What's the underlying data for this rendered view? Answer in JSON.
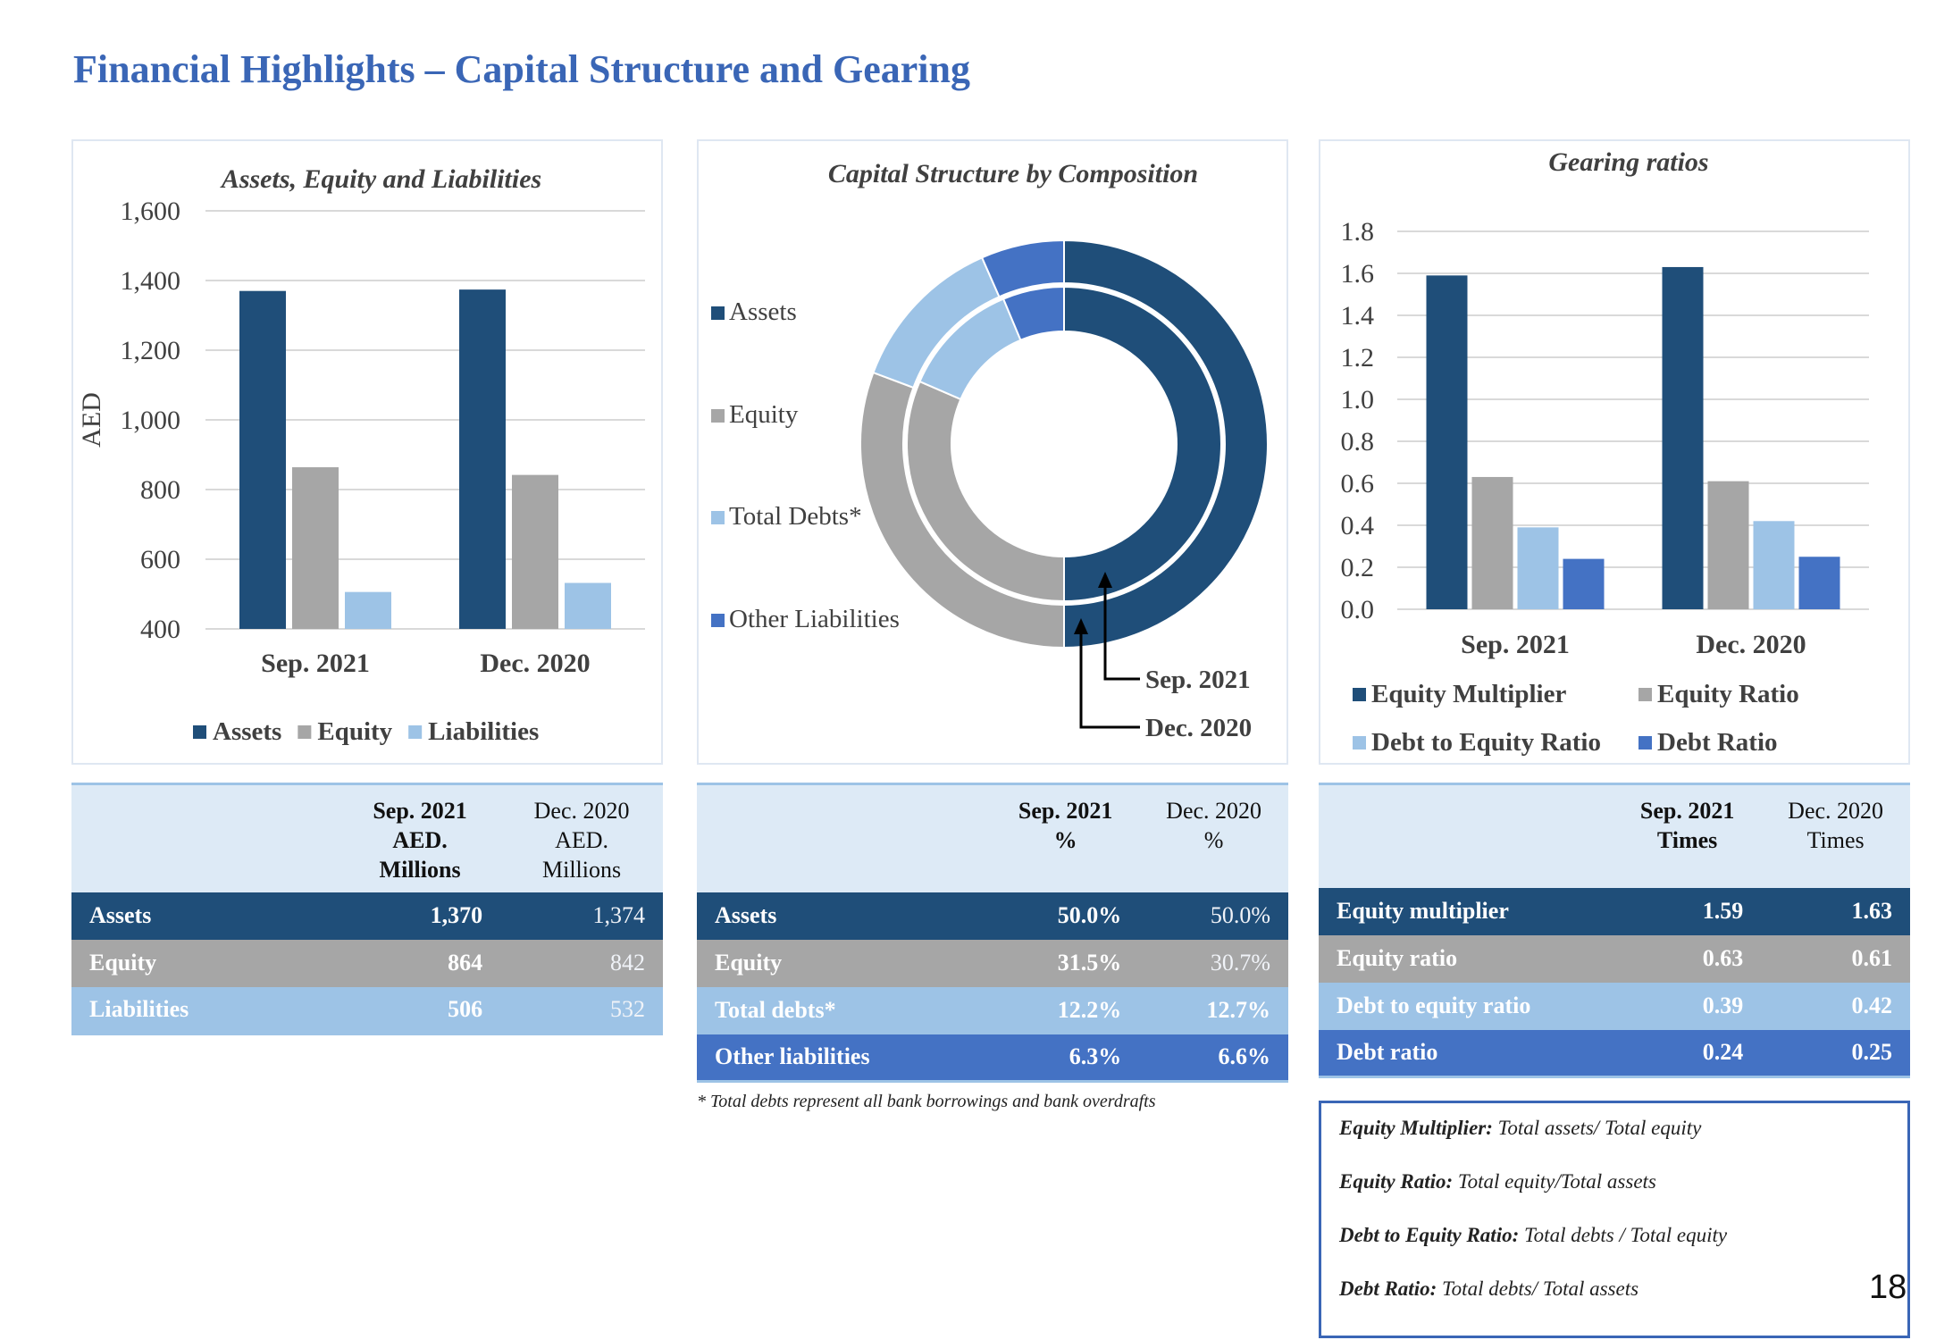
{
  "page": {
    "title": "Financial Highlights – Capital Structure and Gearing",
    "page_number": "18",
    "footnote": "* Total debts represent all bank borrowings and bank overdrafts"
  },
  "colors": {
    "assets": "#1f4e79",
    "equity": "#a6a6a6",
    "total_debts": "#9dc3e6",
    "other_liabilities": "#4472c4",
    "title": "#3a66b6"
  },
  "chart_data": [
    {
      "type": "bar",
      "title": "Assets, Equity and Liabilities",
      "ylabel": "AED",
      "xlabel": "",
      "ylim": [
        400,
        1600
      ],
      "yticks": [
        "1,600",
        "1,400",
        "1,200",
        "1,000",
        "800",
        "600",
        "400"
      ],
      "categories": [
        "Sep. 2021",
        "Dec. 2020"
      ],
      "series": [
        {
          "name": "Assets",
          "values": [
            1370,
            1374
          ]
        },
        {
          "name": "Equity",
          "values": [
            864,
            842
          ]
        },
        {
          "name": "Liabilities",
          "values": [
            506,
            532
          ]
        }
      ],
      "grid": true,
      "legend": "bottom"
    },
    {
      "type": "pie",
      "subtype": "doughnut",
      "title": "Capital Structure by Composition",
      "legend_entries": [
        "Assets",
        "Equity",
        "Total Debts*",
        "Other Liabilities"
      ],
      "legend": "left",
      "rings": [
        {
          "name": "Sep. 2021",
          "position": "inner",
          "values": [
            50.0,
            31.5,
            12.2,
            6.3
          ]
        },
        {
          "name": "Dec. 2020",
          "position": "outer",
          "values": [
            50.0,
            30.7,
            12.7,
            6.6
          ]
        }
      ],
      "annotations": [
        "Sep. 2021",
        "Dec. 2020"
      ]
    },
    {
      "type": "bar",
      "title": "Gearing ratios",
      "xlabel": "",
      "ylabel": "",
      "ylim": [
        0,
        1.8
      ],
      "yticks": [
        "1.8",
        "1.6",
        "1.4",
        "1.2",
        "1.0",
        "0.8",
        "0.6",
        "0.4",
        "0.2",
        "0.0"
      ],
      "categories": [
        "Sep. 2021",
        "Dec. 2020"
      ],
      "series": [
        {
          "name": "Equity Multiplier",
          "values": [
            1.59,
            1.63
          ]
        },
        {
          "name": "Equity Ratio",
          "values": [
            0.63,
            0.61
          ]
        },
        {
          "name": "Debt to Equity Ratio",
          "values": [
            0.39,
            0.42
          ]
        },
        {
          "name": "Debt Ratio",
          "values": [
            0.24,
            0.25
          ]
        }
      ],
      "grid": true,
      "legend": "bottom"
    }
  ],
  "tables": {
    "aed": {
      "headers": [
        [
          "Sep. 2021",
          "AED.",
          "Millions"
        ],
        [
          "Dec. 2020",
          "AED.",
          "Millions"
        ]
      ],
      "rows": [
        {
          "label": "Assets",
          "v1": "1,370",
          "v2": "1,374"
        },
        {
          "label": "Equity",
          "v1": "864",
          "v2": "842"
        },
        {
          "label": "Liabilities",
          "v1": "506",
          "v2": "532"
        }
      ]
    },
    "pct": {
      "headers": [
        [
          "Sep. 2021",
          "%"
        ],
        [
          "Dec. 2020",
          "%"
        ]
      ],
      "rows": [
        {
          "label": "Assets",
          "v1": "50.0%",
          "v2": "50.0%"
        },
        {
          "label": "Equity",
          "v1": "31.5%",
          "v2": "30.7%"
        },
        {
          "label": "Total debts*",
          "v1": "12.2%",
          "v2": "12.7%"
        },
        {
          "label": "Other liabilities",
          "v1": "6.3%",
          "v2": "6.6%"
        }
      ]
    },
    "times": {
      "headers": [
        [
          "Sep. 2021",
          "Times"
        ],
        [
          "Dec. 2020",
          "Times"
        ]
      ],
      "rows": [
        {
          "label": "Equity multiplier",
          "v1": "1.59",
          "v2": "1.63"
        },
        {
          "label": "Equity ratio",
          "v1": "0.63",
          "v2": "0.61"
        },
        {
          "label": "Debt to equity ratio",
          "v1": "0.39",
          "v2": "0.42"
        },
        {
          "label": "Debt ratio",
          "v1": "0.24",
          "v2": "0.25"
        }
      ]
    }
  },
  "definitions": [
    {
      "term": "Equity Multiplier:",
      "text": " Total assets/ Total equity"
    },
    {
      "term": "Equity Ratio:",
      "text": " Total equity/Total assets"
    },
    {
      "term": "Debt to Equity Ratio:",
      "text": " Total debts / Total equity"
    },
    {
      "term": "Debt Ratio:",
      "text": " Total debts/ Total assets"
    }
  ]
}
